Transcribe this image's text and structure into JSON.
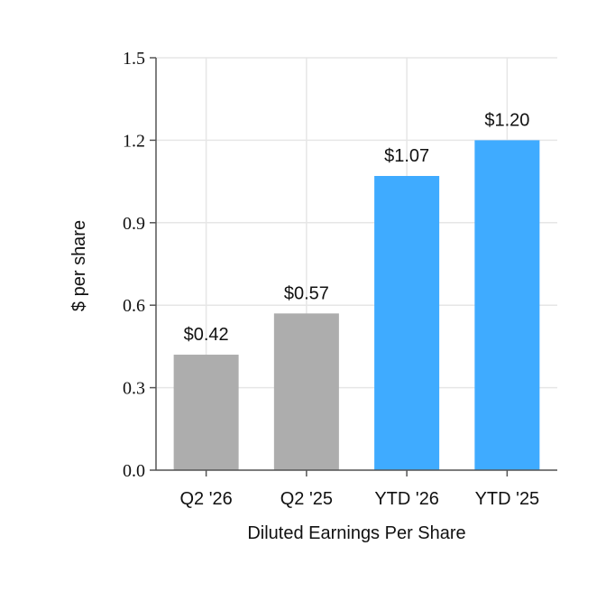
{
  "chart_data": {
    "type": "bar",
    "categories": [
      "Q2 '26",
      "Q2 '25",
      "YTD '26",
      "YTD '25"
    ],
    "values": [
      0.42,
      0.57,
      1.07,
      1.2
    ],
    "data_labels": [
      "$0.42",
      "$0.57",
      "$1.07",
      "$1.20"
    ],
    "bar_colors": [
      "#adadad",
      "#adadad",
      "#3fabff",
      "#3fabff"
    ],
    "xlabel": "Diluted Earnings Per Share",
    "ylabel": "$ per share",
    "ylim": [
      0,
      1.5
    ],
    "yticks": [
      "0.0",
      "0.3",
      "0.6",
      "0.9",
      "1.2",
      "1.5"
    ],
    "grid": true,
    "legend": false
  }
}
